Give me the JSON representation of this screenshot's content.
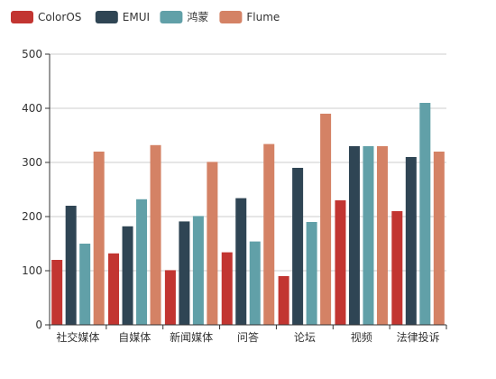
{
  "chart_data": {
    "type": "bar",
    "title": "",
    "xlabel": "",
    "ylabel": "",
    "ylim": [
      0,
      500
    ],
    "yticks": [
      0,
      100,
      200,
      300,
      400,
      500
    ],
    "grid": true,
    "legend_position": "top-left",
    "categories": [
      "社交媒体",
      "自媒体",
      "新闻媒体",
      "问答",
      "论坛",
      "视频",
      "法律投诉"
    ],
    "series": [
      {
        "name": "ColorOS",
        "color": "#c23531",
        "values": [
          120,
          132,
          101,
          134,
          90,
          230,
          210
        ]
      },
      {
        "name": "EMUI",
        "color": "#2f4554",
        "values": [
          220,
          182,
          191,
          234,
          290,
          330,
          310
        ]
      },
      {
        "name": "鸿蒙",
        "color": "#61a0a8",
        "values": [
          150,
          232,
          201,
          154,
          190,
          330,
          410
        ]
      },
      {
        "name": "Flume",
        "color": "#d48265",
        "values": [
          320,
          332,
          301,
          334,
          390,
          330,
          320
        ]
      }
    ]
  }
}
